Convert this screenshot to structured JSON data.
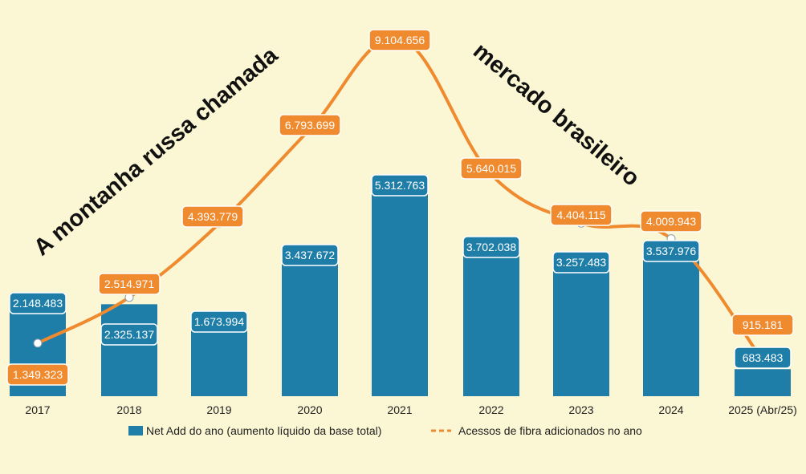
{
  "chart_data": {
    "type": "bar",
    "title_left": "A montanha russa chamada",
    "title_right": "mercado brasileiro",
    "categories": [
      "2017",
      "2018",
      "2019",
      "2020",
      "2021",
      "2022",
      "2023",
      "2024",
      "2025 (Abr/25)"
    ],
    "series": [
      {
        "name": "Net Add do ano (aumento líquido da base total)",
        "type": "bar",
        "color": "#1f7ea8",
        "values": [
          2148483,
          2325137,
          1673994,
          3437672,
          5312763,
          3702038,
          3257483,
          3537976,
          683483
        ],
        "labels": [
          "2.148.483",
          "2.325.137",
          "1.673.994",
          "3.437.672",
          "5.312.763",
          "3.702.038",
          "3.257.483",
          "3.537.976",
          "683.483"
        ]
      },
      {
        "name": "Acessos de fibra adicionados no ano",
        "type": "line",
        "color": "#ef8a2f",
        "values": [
          1349323,
          2514971,
          4393779,
          6793699,
          9104656,
          5640015,
          4404115,
          4009943,
          915181
        ],
        "labels": [
          "1.349.323",
          "2.514.971",
          "4.393.779",
          "6.793.699",
          "9.104.656",
          "5.640.015",
          "4.404.115",
          "4.009.943",
          "915.181"
        ]
      }
    ],
    "ylim": [
      0,
      9500000
    ],
    "legend_position": "bottom",
    "grid": false
  }
}
